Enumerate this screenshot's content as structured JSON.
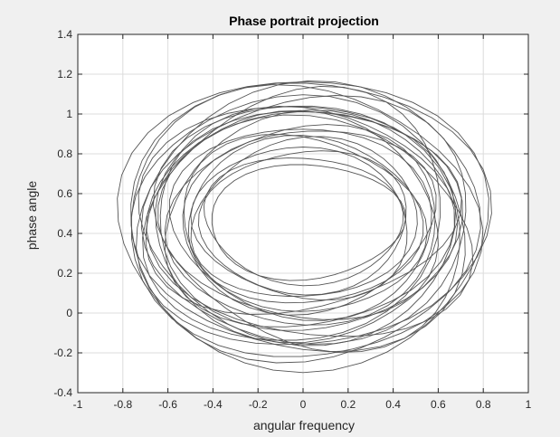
{
  "chart_data": {
    "type": "line",
    "title": "Phase portrait projection",
    "xlabel": "angular frequency",
    "ylabel": "phase angle",
    "xlim": [
      -1,
      1
    ],
    "ylim": [
      -0.4,
      1.4
    ],
    "xticks": [
      -1,
      -0.8,
      -0.6,
      -0.4,
      -0.2,
      0,
      0.2,
      0.4,
      0.6,
      0.8,
      1
    ],
    "yticks": [
      -0.4,
      -0.2,
      0,
      0.2,
      0.4,
      0.6,
      0.8,
      1,
      1.2,
      1.4
    ],
    "xtick_labels": [
      "-1",
      "-0.8",
      "-0.6",
      "-0.4",
      "-0.2",
      "0",
      "0.2",
      "0.4",
      "0.6",
      "0.8",
      "1"
    ],
    "ytick_labels": [
      "-0.4",
      "-0.2",
      "0",
      "0.2",
      "0.4",
      "0.6",
      "0.8",
      "1",
      "1.2",
      "1.4"
    ],
    "grid": true,
    "series": [
      {
        "color": "#555555",
        "description_of_shape": "dense bundle of quasi-periodic closed loops centered near (0, 0.45)",
        "loops": [
          {
            "cx": 0.0,
            "cy": 0.46,
            "rx": 0.82,
            "ry": 0.73,
            "tilt": 0.0
          },
          {
            "cx": 0.01,
            "cy": 0.47,
            "rx": 0.8,
            "ry": 0.7,
            "tilt": 0.03
          },
          {
            "cx": -0.01,
            "cy": 0.45,
            "rx": 0.78,
            "ry": 0.68,
            "tilt": -0.03
          },
          {
            "cx": 0.02,
            "cy": 0.48,
            "rx": 0.76,
            "ry": 0.66,
            "tilt": 0.05
          },
          {
            "cx": 0.0,
            "cy": 0.44,
            "rx": 0.74,
            "ry": 0.64,
            "tilt": -0.05
          },
          {
            "cx": 0.03,
            "cy": 0.47,
            "rx": 0.72,
            "ry": 0.62,
            "tilt": 0.04
          },
          {
            "cx": -0.02,
            "cy": 0.46,
            "rx": 0.7,
            "ry": 0.6,
            "tilt": -0.04
          },
          {
            "cx": 0.01,
            "cy": 0.45,
            "rx": 0.68,
            "ry": 0.58,
            "tilt": 0.02
          },
          {
            "cx": 0.0,
            "cy": 0.47,
            "rx": 0.66,
            "ry": 0.56,
            "tilt": -0.02
          },
          {
            "cx": 0.02,
            "cy": 0.46,
            "rx": 0.64,
            "ry": 0.54,
            "tilt": 0.06
          },
          {
            "cx": -0.01,
            "cy": 0.48,
            "rx": 0.62,
            "ry": 0.52,
            "tilt": -0.06
          },
          {
            "cx": 0.01,
            "cy": 0.44,
            "rx": 0.6,
            "ry": 0.5,
            "tilt": 0.03
          },
          {
            "cx": 0.0,
            "cy": 0.46,
            "rx": 0.58,
            "ry": 0.48,
            "tilt": -0.03
          },
          {
            "cx": 0.02,
            "cy": 0.47,
            "rx": 0.56,
            "ry": 0.46,
            "tilt": 0.05
          },
          {
            "cx": -0.01,
            "cy": 0.45,
            "rx": 0.54,
            "ry": 0.44,
            "tilt": -0.05
          },
          {
            "cx": 0.0,
            "cy": 0.46,
            "rx": 0.52,
            "ry": 0.42,
            "tilt": 0.0
          },
          {
            "cx": 0.01,
            "cy": 0.47,
            "rx": 0.5,
            "ry": 0.4,
            "tilt": 0.04
          },
          {
            "cx": 0.0,
            "cy": 0.45,
            "rx": 0.48,
            "ry": 0.38,
            "tilt": -0.04
          },
          {
            "cx": 0.01,
            "cy": 0.46,
            "rx": 0.46,
            "ry": 0.36,
            "tilt": 0.02
          },
          {
            "cx": 0.0,
            "cy": 0.47,
            "rx": 0.44,
            "ry": 0.32,
            "tilt": -0.02
          },
          {
            "cx": 0.01,
            "cy": 0.46,
            "rx": 0.43,
            "ry": 0.29,
            "tilt": 0.01
          },
          {
            "cx": -0.02,
            "cy": 0.5,
            "rx": 0.7,
            "ry": 0.5,
            "tilt": 0.08
          },
          {
            "cx": 0.03,
            "cy": 0.42,
            "rx": 0.72,
            "ry": 0.55,
            "tilt": -0.08
          },
          {
            "cx": -0.03,
            "cy": 0.48,
            "rx": 0.66,
            "ry": 0.63,
            "tilt": 0.1
          },
          {
            "cx": 0.04,
            "cy": 0.44,
            "rx": 0.68,
            "ry": 0.61,
            "tilt": -0.1
          }
        ]
      }
    ]
  }
}
